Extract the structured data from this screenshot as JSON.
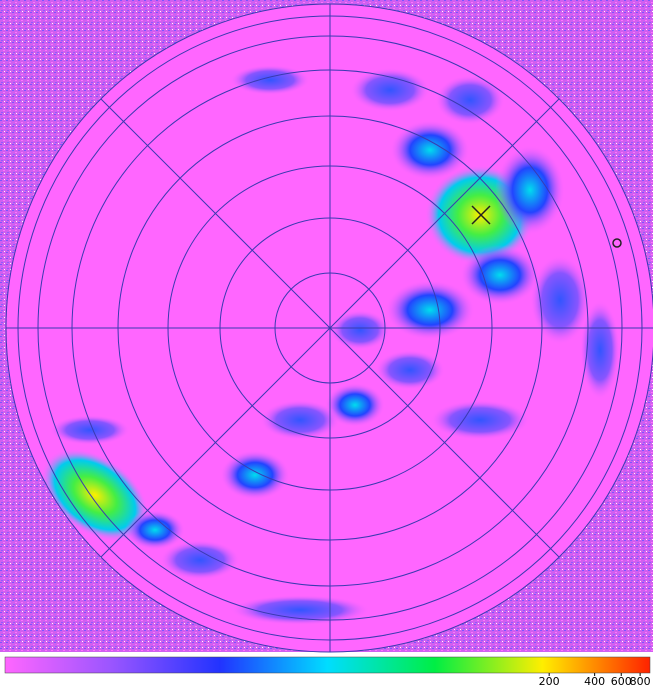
{
  "chart_data": {
    "type": "heatmap",
    "colorbar": {
      "lim": [
        0.05,
        930
      ],
      "log": true,
      "ticks": [
        200,
        400,
        600,
        800
      ],
      "colors": [
        "#ff66ff",
        "#9955ff",
        "#2233ff",
        "#00ddff",
        "#00ee44",
        "#ffee00",
        "#ff2200"
      ]
    }
  }
}
